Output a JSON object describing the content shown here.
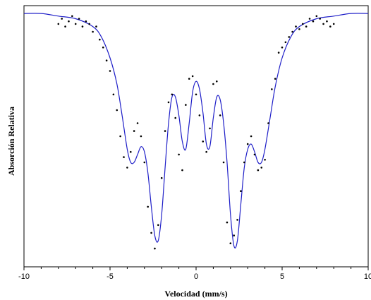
{
  "chart_data": {
    "type": "scatter",
    "title": "",
    "xlabel": "Velocidad (mm/s)",
    "ylabel": "Absorción Relativa",
    "xlim": [
      -10,
      10
    ],
    "ylim": [
      0,
      1
    ],
    "x_ticks": [
      -10,
      -5,
      0,
      5,
      10
    ],
    "x_tick_labels": [
      "-10",
      "-5",
      "0",
      "5",
      "10"
    ],
    "y_ticks_labeled": false,
    "grid": false,
    "legend": "none",
    "colors": {
      "fit_line": "#1f1fc8",
      "points": "#000000"
    },
    "series": [
      {
        "kind": "points",
        "x": [
          -8.0,
          -7.8,
          -7.6,
          -7.4,
          -7.2,
          -7.0,
          -6.8,
          -6.6,
          -6.4,
          -6.2,
          -6.0,
          -5.8,
          -5.6,
          -5.4,
          -5.2,
          -5.0,
          -4.8,
          -4.6,
          -4.4,
          -4.2,
          -4.0,
          -3.8,
          -3.6,
          -3.4,
          -3.2,
          -3.0,
          -2.8,
          -2.6,
          -2.4,
          -2.2,
          -2.0,
          -1.8,
          -1.6,
          -1.4,
          -1.2,
          -1.0,
          -0.8,
          -0.6,
          -0.4,
          -0.2,
          0.0,
          0.2,
          0.4,
          0.6,
          0.8,
          1.0,
          1.2,
          1.4,
          1.6,
          1.8,
          2.0,
          2.2,
          2.4,
          2.6,
          2.8,
          3.0,
          3.2,
          3.4,
          3.6,
          3.8,
          4.0,
          4.2,
          4.4,
          4.6,
          4.8,
          5.0,
          5.2,
          5.4,
          5.6,
          5.8,
          6.0,
          6.2,
          6.4,
          6.6,
          6.8,
          7.0,
          7.2,
          7.4,
          7.6,
          7.8,
          8.0
        ],
        "y": [
          0.93,
          0.95,
          0.92,
          0.94,
          0.96,
          0.93,
          0.95,
          0.92,
          0.94,
          0.93,
          0.9,
          0.92,
          0.87,
          0.84,
          0.79,
          0.75,
          0.66,
          0.6,
          0.5,
          0.42,
          0.38,
          0.44,
          0.52,
          0.55,
          0.5,
          0.4,
          0.23,
          0.13,
          0.07,
          0.16,
          0.34,
          0.52,
          0.63,
          0.66,
          0.57,
          0.43,
          0.37,
          0.62,
          0.72,
          0.73,
          0.66,
          0.58,
          0.48,
          0.44,
          0.53,
          0.7,
          0.71,
          0.58,
          0.4,
          0.17,
          0.09,
          0.12,
          0.18,
          0.29,
          0.4,
          0.47,
          0.5,
          0.43,
          0.37,
          0.38,
          0.41,
          0.55,
          0.68,
          0.72,
          0.82,
          0.84,
          0.86,
          0.88,
          0.9,
          0.92,
          0.91,
          0.93,
          0.92,
          0.95,
          0.94,
          0.96,
          0.95,
          0.93,
          0.94,
          0.92,
          0.93
        ]
      },
      {
        "kind": "fit",
        "x": [
          -10.0,
          -9.0,
          -8.0,
          -7.0,
          -6.0,
          -5.5,
          -5.0,
          -4.6,
          -4.3,
          -4.0,
          -3.8,
          -3.6,
          -3.4,
          -3.2,
          -3.0,
          -2.8,
          -2.6,
          -2.4,
          -2.2,
          -2.0,
          -1.8,
          -1.6,
          -1.4,
          -1.2,
          -1.0,
          -0.8,
          -0.6,
          -0.4,
          -0.2,
          0.0,
          0.2,
          0.4,
          0.6,
          0.8,
          1.0,
          1.2,
          1.4,
          1.6,
          1.8,
          2.0,
          2.2,
          2.4,
          2.6,
          2.8,
          3.0,
          3.2,
          3.4,
          3.6,
          3.8,
          4.0,
          4.3,
          4.6,
          5.0,
          5.5,
          6.0,
          7.0,
          8.0,
          9.0,
          10.0
        ],
        "y": [
          0.97,
          0.97,
          0.96,
          0.95,
          0.92,
          0.88,
          0.8,
          0.7,
          0.58,
          0.45,
          0.4,
          0.4,
          0.43,
          0.46,
          0.44,
          0.36,
          0.23,
          0.12,
          0.1,
          0.2,
          0.38,
          0.55,
          0.65,
          0.65,
          0.58,
          0.48,
          0.45,
          0.55,
          0.67,
          0.71,
          0.68,
          0.59,
          0.47,
          0.46,
          0.57,
          0.65,
          0.64,
          0.55,
          0.4,
          0.2,
          0.08,
          0.1,
          0.24,
          0.38,
          0.45,
          0.47,
          0.44,
          0.4,
          0.4,
          0.45,
          0.57,
          0.69,
          0.8,
          0.88,
          0.92,
          0.95,
          0.96,
          0.97,
          0.97
        ]
      }
    ]
  }
}
